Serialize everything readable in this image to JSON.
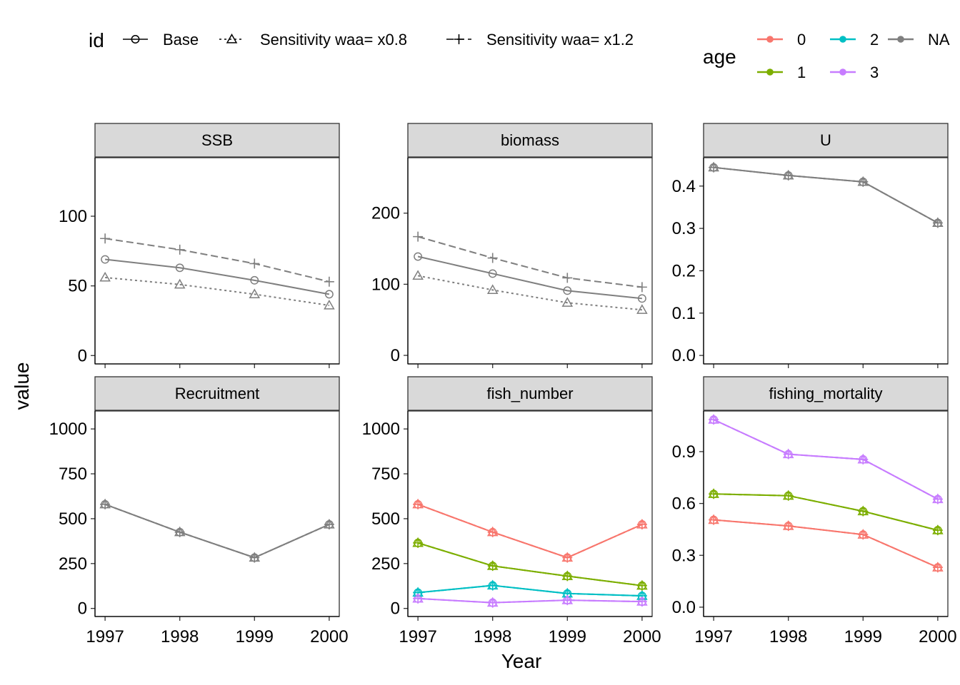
{
  "chart_data": {
    "type": "line",
    "xlabel": "Year",
    "ylabel": "value",
    "x": [
      1997,
      1998,
      1999,
      2000
    ],
    "legend_id": {
      "title": "id",
      "position": "top",
      "entries": [
        {
          "label": "Base",
          "marker": "circle",
          "dash": "solid"
        },
        {
          "label": "Sensitivity waa= x0.8",
          "marker": "triangle",
          "dash": "dotted"
        },
        {
          "label": "Sensitivity waa= x1.2",
          "marker": "plus",
          "dash": "dashed"
        }
      ]
    },
    "legend_age": {
      "title": "age",
      "position": "top-right",
      "entries": [
        {
          "label": "0",
          "color": "#F8766D"
        },
        {
          "label": "2",
          "color": "#00BFC4"
        },
        {
          "label": "NA",
          "color": "#7F7F7F"
        },
        {
          "label": "1",
          "color": "#7CAE00"
        },
        {
          "label": "3",
          "color": "#C77CFF"
        }
      ]
    },
    "panels": [
      {
        "strip": "SSB",
        "ylim": [
          -6,
          142
        ],
        "yticks": [
          0,
          50,
          100
        ],
        "yticklabels": [
          "0",
          "50",
          "100"
        ],
        "series": [
          {
            "id": "Base",
            "age": "NA",
            "values": [
              69,
              63,
              54,
              44
            ]
          },
          {
            "id": "Sensitivity waa= x0.8",
            "age": "NA",
            "values": [
              56,
              51,
              44,
              36
            ]
          },
          {
            "id": "Sensitivity waa= x1.2",
            "age": "NA",
            "values": [
              84,
              76,
              66,
              53
            ]
          }
        ]
      },
      {
        "strip": "biomass",
        "ylim": [
          -12,
          278
        ],
        "yticks": [
          0,
          100,
          200
        ],
        "yticklabels": [
          "0",
          "100",
          "200"
        ],
        "series": [
          {
            "id": "Base",
            "age": "NA",
            "values": [
              139,
              115,
              91,
              80
            ]
          },
          {
            "id": "Sensitivity waa= x0.8",
            "age": "NA",
            "values": [
              112,
              92,
              74,
              64
            ]
          },
          {
            "id": "Sensitivity waa= x1.2",
            "age": "NA",
            "values": [
              167,
              137,
              109,
              96
            ]
          }
        ]
      },
      {
        "strip": "U",
        "ylim": [
          -0.02,
          0.467
        ],
        "yticks": [
          0,
          0.1,
          0.2,
          0.3,
          0.4
        ],
        "yticklabels": [
          "0.0",
          "0.1",
          "0.2",
          "0.3",
          "0.4"
        ],
        "series": [
          {
            "id": "Base",
            "age": "NA",
            "values": [
              0.444,
              0.425,
              0.41,
              0.313
            ]
          },
          {
            "id": "Sensitivity waa= x0.8",
            "age": "NA",
            "values": [
              0.444,
              0.425,
              0.41,
              0.313
            ]
          },
          {
            "id": "Sensitivity waa= x1.2",
            "age": "NA",
            "values": [
              0.444,
              0.425,
              0.41,
              0.313
            ]
          }
        ]
      },
      {
        "strip": "Recruitment",
        "ylim": [
          -45,
          1100
        ],
        "yticks": [
          0,
          250,
          500,
          750,
          1000
        ],
        "yticklabels": [
          "0",
          "250",
          "500",
          "750",
          "1000"
        ],
        "series": [
          {
            "id": "Base",
            "age": "NA",
            "values": [
              580,
              425,
              283,
              468
            ]
          },
          {
            "id": "Sensitivity waa= x0.8",
            "age": "NA",
            "values": [
              580,
              425,
              283,
              468
            ]
          },
          {
            "id": "Sensitivity waa= x1.2",
            "age": "NA",
            "values": [
              580,
              425,
              283,
              468
            ]
          }
        ]
      },
      {
        "strip": "fish_number",
        "ylim": [
          -45,
          1100
        ],
        "yticks": [
          0,
          250,
          500,
          750,
          1000
        ],
        "yticklabels": [
          "0",
          "250",
          "500",
          "750",
          "1000"
        ],
        "series": [
          {
            "id": "Base",
            "age": "0",
            "values": [
              580,
              425,
              283,
              468
            ]
          },
          {
            "id": "Base",
            "age": "1",
            "values": [
              365,
              237,
              180,
              127
            ]
          },
          {
            "id": "Base",
            "age": "2",
            "values": [
              88,
              128,
              83,
              70
            ]
          },
          {
            "id": "Base",
            "age": "3",
            "values": [
              55,
              32,
              46,
              38
            ]
          },
          {
            "id": "Sensitivity waa= x0.8",
            "age": "0",
            "values": [
              580,
              425,
              283,
              468
            ]
          },
          {
            "id": "Sensitivity waa= x0.8",
            "age": "1",
            "values": [
              365,
              237,
              180,
              127
            ]
          },
          {
            "id": "Sensitivity waa= x0.8",
            "age": "2",
            "values": [
              88,
              128,
              83,
              70
            ]
          },
          {
            "id": "Sensitivity waa= x0.8",
            "age": "3",
            "values": [
              55,
              32,
              46,
              38
            ]
          },
          {
            "id": "Sensitivity waa= x1.2",
            "age": "0",
            "values": [
              580,
              425,
              283,
              468
            ]
          },
          {
            "id": "Sensitivity waa= x1.2",
            "age": "1",
            "values": [
              365,
              237,
              180,
              127
            ]
          },
          {
            "id": "Sensitivity waa= x1.2",
            "age": "2",
            "values": [
              88,
              128,
              83,
              70
            ]
          },
          {
            "id": "Sensitivity waa= x1.2",
            "age": "3",
            "values": [
              55,
              32,
              46,
              38
            ]
          }
        ]
      },
      {
        "strip": "fishing_mortality",
        "ylim": [
          -0.054,
          1.135
        ],
        "yticks": [
          0,
          0.3,
          0.6,
          0.9
        ],
        "yticklabels": [
          "0.0",
          "0.3",
          "0.6",
          "0.9"
        ],
        "series": [
          {
            "id": "Base",
            "age": "0",
            "values": [
              0.505,
              0.47,
              0.42,
              0.23
            ]
          },
          {
            "id": "Base",
            "age": "1",
            "values": [
              0.655,
              0.645,
              0.555,
              0.445
            ]
          },
          {
            "id": "Base",
            "age": "3",
            "values": [
              1.085,
              0.885,
              0.855,
              0.625
            ]
          },
          {
            "id": "Sensitivity waa= x0.8",
            "age": "0",
            "values": [
              0.505,
              0.47,
              0.42,
              0.23
            ]
          },
          {
            "id": "Sensitivity waa= x0.8",
            "age": "1",
            "values": [
              0.655,
              0.645,
              0.555,
              0.445
            ]
          },
          {
            "id": "Sensitivity waa= x0.8",
            "age": "3",
            "values": [
              1.085,
              0.885,
              0.855,
              0.625
            ]
          },
          {
            "id": "Sensitivity waa= x1.2",
            "age": "0",
            "values": [
              0.505,
              0.47,
              0.42,
              0.23
            ]
          },
          {
            "id": "Sensitivity waa= x1.2",
            "age": "1",
            "values": [
              0.655,
              0.645,
              0.555,
              0.445
            ]
          },
          {
            "id": "Sensitivity waa= x1.2",
            "age": "3",
            "values": [
              1.085,
              0.885,
              0.855,
              0.625
            ]
          }
        ]
      }
    ]
  }
}
